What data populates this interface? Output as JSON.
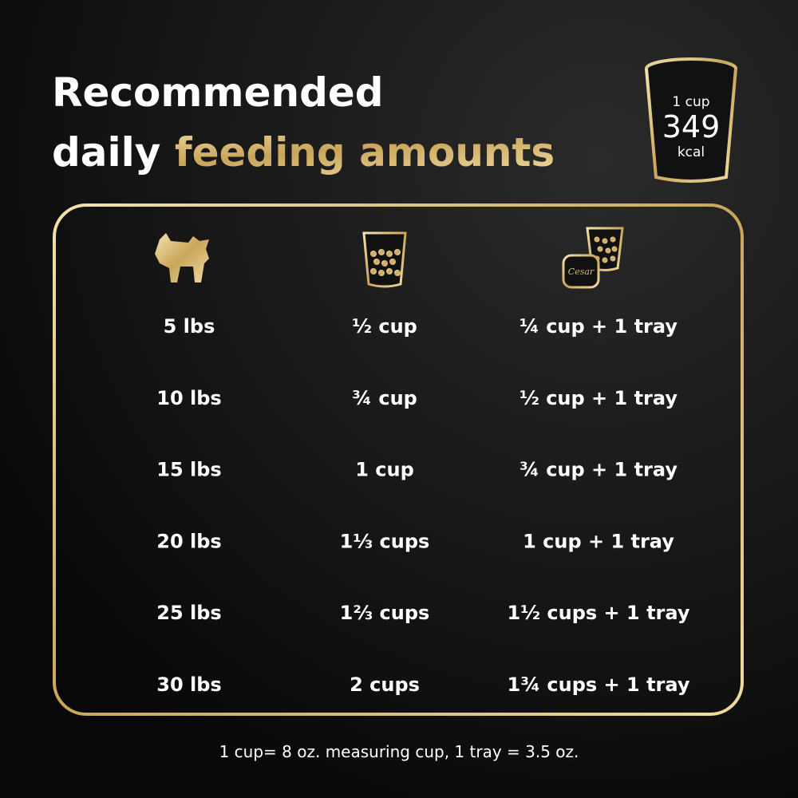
{
  "header": {
    "title_line1": "Recommended",
    "title_plain": "daily",
    "title_gold": "feeding amounts"
  },
  "badge": {
    "top": "1 cup",
    "value": "349",
    "unit": "kcal"
  },
  "tray_logo": "Cesar",
  "table": {
    "rows": [
      [
        "5 lbs",
        "½ cup",
        "¼ cup + 1 tray"
      ],
      [
        "10 lbs",
        "¾ cup",
        "½ cup + 1 tray"
      ],
      [
        "15 lbs",
        "1 cup",
        "¾ cup + 1 tray"
      ],
      [
        "20 lbs",
        "1⅓ cups",
        "1 cup + 1 tray"
      ],
      [
        "25 lbs",
        "1⅔ cups",
        "1½ cups + 1 tray"
      ],
      [
        "30 lbs",
        "2 cups",
        "1¾ cups + 1 tray"
      ]
    ]
  },
  "footer": "1 cup= 8 oz. measuring cup, 1 tray = 3.5 oz."
}
